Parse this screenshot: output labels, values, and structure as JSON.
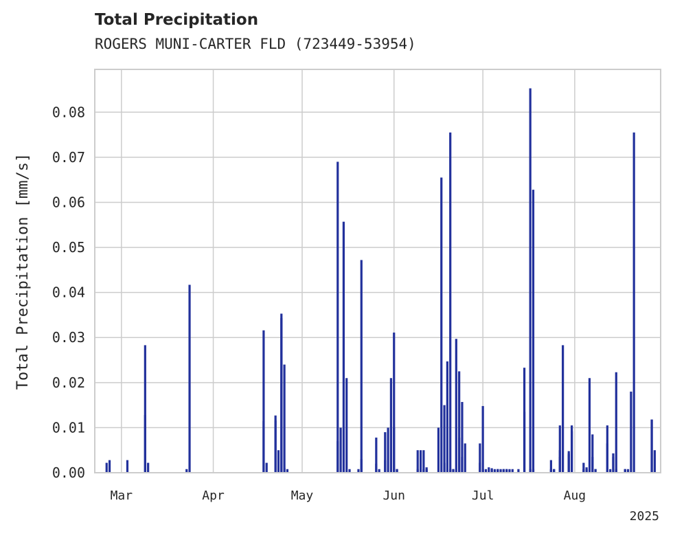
{
  "chart_data": {
    "type": "bar",
    "title": "Total Precipitation",
    "subtitle": "ROGERS MUNI-CARTER FLD (723449-53954)",
    "xlabel": "",
    "ylabel": "Total Precipitation [mm/s]",
    "year_label": "2025",
    "x_tick_labels": [
      "Mar",
      "Apr",
      "May",
      "Jun",
      "Jul",
      "Aug"
    ],
    "y_tick_labels": [
      "0.00",
      "0.01",
      "0.02",
      "0.03",
      "0.04",
      "0.05",
      "0.06",
      "0.07",
      "0.08"
    ],
    "ylim": [
      0,
      0.0895
    ],
    "xlim": [
      "2025-02-20",
      "2025-08-30"
    ],
    "grid": true,
    "series": [
      {
        "color": "#22319c",
        "x": [
          "2025-02-24",
          "2025-02-25",
          "2025-03-03",
          "2025-03-09",
          "2025-03-09",
          "2025-03-10",
          "2025-03-23",
          "2025-03-24",
          "2025-04-18",
          "2025-04-18",
          "2025-04-19",
          "2025-04-22",
          "2025-04-22",
          "2025-04-23",
          "2025-04-24",
          "2025-04-24",
          "2025-04-25",
          "2025-04-25",
          "2025-04-26",
          "2025-05-13",
          "2025-05-13",
          "2025-05-14",
          "2025-05-15",
          "2025-05-16",
          "2025-05-17",
          "2025-05-20",
          "2025-05-21",
          "2025-05-21",
          "2025-05-26",
          "2025-05-26",
          "2025-05-27",
          "2025-05-29",
          "2025-05-29",
          "2025-05-30",
          "2025-05-31",
          "2025-06-01",
          "2025-06-01",
          "2025-06-02",
          "2025-06-02",
          "2025-06-09",
          "2025-06-09",
          "2025-06-10",
          "2025-06-11",
          "2025-06-11",
          "2025-06-12",
          "2025-06-12",
          "2025-06-16",
          "2025-06-17",
          "2025-06-18",
          "2025-06-18",
          "2025-06-19",
          "2025-06-20",
          "2025-06-20",
          "2025-06-21",
          "2025-06-21",
          "2025-06-22",
          "2025-06-23",
          "2025-06-23",
          "2025-06-24",
          "2025-06-24",
          "2025-06-25",
          "2025-06-30",
          "2025-06-30",
          "2025-07-01",
          "2025-07-01",
          "2025-07-02",
          "2025-07-03",
          "2025-07-04",
          "2025-07-04",
          "2025-07-05",
          "2025-07-06",
          "2025-07-06",
          "2025-07-07",
          "2025-07-08",
          "2025-07-08",
          "2025-07-09",
          "2025-07-09",
          "2025-07-10",
          "2025-07-11",
          "2025-07-13",
          "2025-07-15",
          "2025-07-15",
          "2025-07-17",
          "2025-07-17",
          "2025-07-18",
          "2025-07-18",
          "2025-07-24",
          "2025-07-24",
          "2025-07-25",
          "2025-07-25",
          "2025-07-27",
          "2025-07-27",
          "2025-07-27",
          "2025-07-28",
          "2025-07-30",
          "2025-07-30",
          "2025-07-30",
          "2025-07-31",
          "2025-07-31",
          "2025-08-04",
          "2025-08-04",
          "2025-08-05",
          "2025-08-05",
          "2025-08-06",
          "2025-08-07",
          "2025-08-07",
          "2025-08-08",
          "2025-08-08",
          "2025-08-12",
          "2025-08-12",
          "2025-08-13",
          "2025-08-14",
          "2025-08-14",
          "2025-08-15",
          "2025-08-15",
          "2025-08-18",
          "2025-08-18",
          "2025-08-19",
          "2025-08-20",
          "2025-08-21",
          "2025-08-27",
          "2025-08-27",
          "2025-08-28"
        ],
        "values": [
          0.0022,
          0.0028,
          0.0028,
          0.0128,
          0.0283,
          0.0022,
          0.0008,
          0.0417,
          0.0115,
          0.0316,
          0.0022,
          0.0127,
          0.0116,
          0.005,
          0.0353,
          0.0343,
          0.001,
          0.024,
          0.0008,
          0.007,
          0.069,
          0.01,
          0.0557,
          0.021,
          0.0008,
          0.0008,
          0.0472,
          0.003,
          0.0078,
          0.002,
          0.0008,
          0.0028,
          0.009,
          0.01,
          0.021,
          0.01,
          0.0311,
          0.0008,
          0.0008,
          0.005,
          0.0008,
          0.005,
          0.0008,
          0.005,
          0.0012,
          0.0008,
          0.01,
          0.0655,
          0.015,
          0.0022,
          0.0247,
          0.0755,
          0.0008,
          0.0008,
          0.0008,
          0.0297,
          0.0078,
          0.0225,
          0.0157,
          0.0035,
          0.0065,
          0.0065,
          0.0022,
          0.0148,
          0.0008,
          0.0008,
          0.0012,
          0.0008,
          0.001,
          0.0008,
          0.0008,
          0.0008,
          0.0008,
          0.0008,
          0.0008,
          0.0008,
          0.0008,
          0.0008,
          0.0008,
          0.0008,
          0.0233,
          0.0135,
          0.0853,
          0.0008,
          0.0628,
          0.0008,
          0.0008,
          0.0028,
          0.0008,
          0.0008,
          0.005,
          0.0105,
          0.0035,
          0.0283,
          0.004,
          0.0043,
          0.0048,
          0.0092,
          0.0105,
          0.0022,
          0.0008,
          0.0008,
          0.0012,
          0.021,
          0.0085,
          0.0035,
          0.0008,
          0.0008,
          0.0065,
          0.0105,
          0.0008,
          0.0043,
          0.0035,
          0.0223,
          0.0008,
          0.0008,
          0.0008,
          0.0008,
          0.018,
          0.0755,
          0.0118,
          0.0118,
          0.005
        ]
      }
    ]
  }
}
